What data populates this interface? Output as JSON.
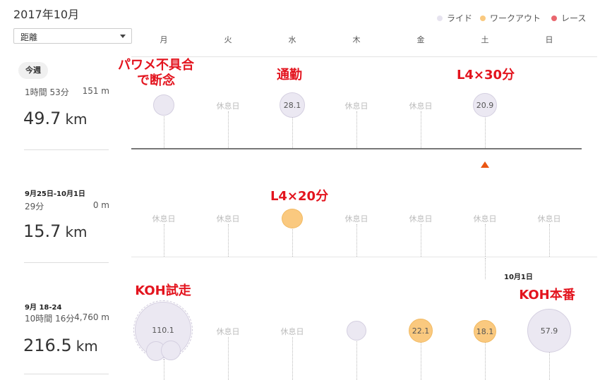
{
  "header": {
    "month": "2017年10月",
    "metric_select": {
      "value": "距離"
    },
    "legend": [
      {
        "label": "ライド",
        "color": "#e6e3ef"
      },
      {
        "label": "ワークアウト",
        "color": "#fac97f"
      },
      {
        "label": "レース",
        "color": "#e9666e"
      }
    ],
    "days": [
      "月",
      "火",
      "水",
      "木",
      "金",
      "土",
      "日"
    ]
  },
  "weeks": [
    {
      "label": "今週",
      "time": "1時間 53分",
      "elevation": "151 m",
      "distance": "49.7",
      "unit": "km",
      "days": [
        {
          "type": "ride",
          "value": ""
        },
        {
          "type": "rest",
          "text": "休息日"
        },
        {
          "type": "ride",
          "value": "28.1"
        },
        {
          "type": "rest",
          "text": "休息日"
        },
        {
          "type": "rest",
          "text": "休息日"
        },
        {
          "type": "ride",
          "value": "20.9"
        },
        {
          "type": "none"
        }
      ]
    },
    {
      "label": "9月25日-10月1日",
      "time": "29分",
      "elevation": "0 m",
      "distance": "15.7",
      "unit": "km",
      "days": [
        {
          "type": "rest",
          "text": "休息日"
        },
        {
          "type": "rest",
          "text": "休息日"
        },
        {
          "type": "workout",
          "value": ""
        },
        {
          "type": "rest",
          "text": "休息日"
        },
        {
          "type": "rest",
          "text": "休息日"
        },
        {
          "type": "rest",
          "text": "休息日"
        },
        {
          "type": "rest",
          "text": "休息日"
        }
      ]
    },
    {
      "label": "9月 18-24",
      "time": "10時間 16分",
      "elevation": "4,760 m",
      "distance": "216.5",
      "unit": "km",
      "days": [
        {
          "type": "ride",
          "value": "110.1"
        },
        {
          "type": "rest",
          "text": "休息日"
        },
        {
          "type": "rest",
          "text": "休息日"
        },
        {
          "type": "ride",
          "value": ""
        },
        {
          "type": "workout",
          "value": "22.1"
        },
        {
          "type": "workout",
          "value": "18.1"
        },
        {
          "type": "ride",
          "value": "57.9"
        }
      ]
    }
  ],
  "date_marker": "10月1日",
  "annotations": [
    {
      "text": "パワメ不具合\nで断念"
    },
    {
      "text": "通勤"
    },
    {
      "text": "L4×30分"
    },
    {
      "text": "L4×20分"
    },
    {
      "text": "KOH試走"
    },
    {
      "text": "KOH本番"
    }
  ]
}
